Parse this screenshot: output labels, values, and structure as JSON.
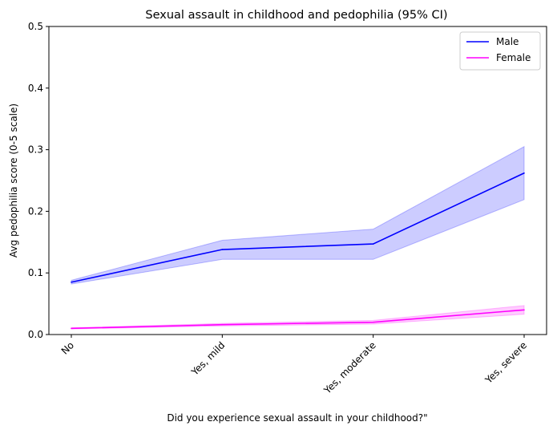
{
  "chart_data": {
    "type": "line",
    "title": "Sexual assault in childhood and pedophilia (95% CI)",
    "xlabel": "Did you experience sexual assault in your childhood?\"",
    "ylabel": "Avg pedophilia score (0-5 scale)",
    "categories": [
      "No",
      "Yes, mild",
      "Yes, moderate",
      "Yes, severe"
    ],
    "ylim": [
      0,
      0.5
    ],
    "yticks": [
      0.0,
      0.1,
      0.2,
      0.3,
      0.4,
      0.5
    ],
    "ytick_labels": [
      "0.0",
      "0.1",
      "0.2",
      "0.3",
      "0.4",
      "0.5"
    ],
    "grid": false,
    "legend_position": "top-right",
    "series": [
      {
        "name": "Male",
        "color": "#0000ff",
        "values": [
          0.085,
          0.138,
          0.147,
          0.262
        ],
        "ci_lower": [
          0.082,
          0.122,
          0.122,
          0.219
        ],
        "ci_upper": [
          0.088,
          0.153,
          0.171,
          0.305
        ]
      },
      {
        "name": "Female",
        "color": "#ff00ff",
        "values": [
          0.01,
          0.016,
          0.02,
          0.04
        ],
        "ci_lower": [
          0.009,
          0.014,
          0.017,
          0.033
        ],
        "ci_upper": [
          0.011,
          0.018,
          0.023,
          0.047
        ]
      }
    ]
  }
}
